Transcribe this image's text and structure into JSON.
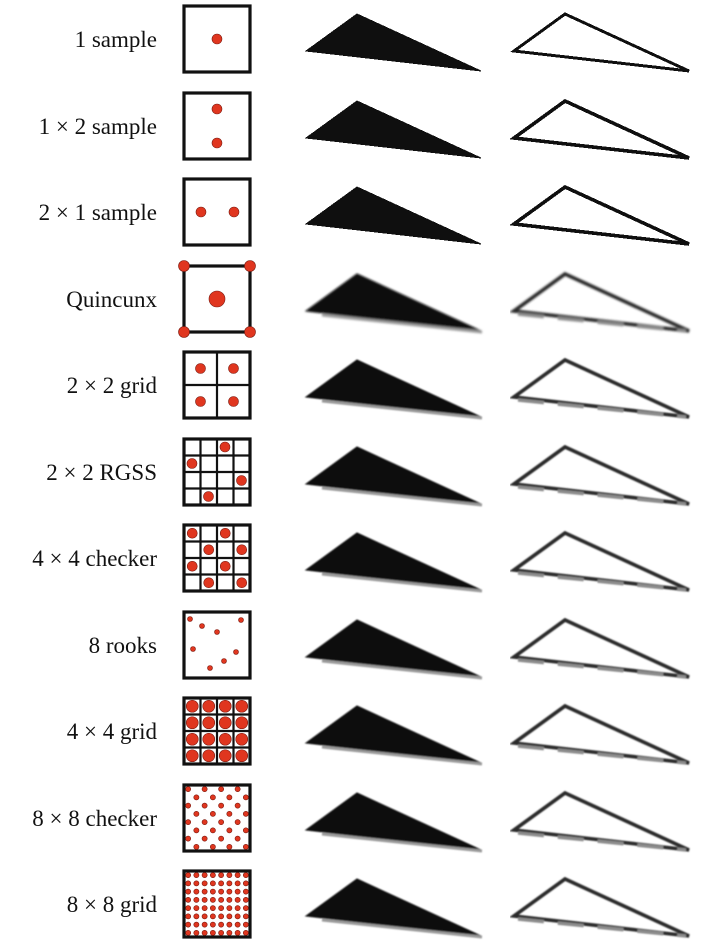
{
  "figure": {
    "rows": [
      {
        "label": "1 sample",
        "pattern": "single"
      },
      {
        "label": "1 × 2  sample",
        "pattern": "vertical-pair"
      },
      {
        "label": "2 × 1 sample",
        "pattern": "horizontal-pair"
      },
      {
        "label": "Quincunx",
        "pattern": "quincunx"
      },
      {
        "label": "2 × 2 grid",
        "pattern": "grid-2x2"
      },
      {
        "label": "2 × 2 RGSS",
        "pattern": "rgss"
      },
      {
        "label": "4 × 4 checker",
        "pattern": "checker-4x4"
      },
      {
        "label": "8 rooks",
        "pattern": "rooks-8"
      },
      {
        "label": "4 × 4 grid",
        "pattern": "grid-4x4"
      },
      {
        "label": "8 × 8 checker",
        "pattern": "checker-8x8"
      },
      {
        "label": "8 × 8 grid",
        "pattern": "grid-8x8"
      }
    ],
    "colors": {
      "sample": "#e0361f",
      "ink": "#111111",
      "background": "#ffffff"
    }
  }
}
